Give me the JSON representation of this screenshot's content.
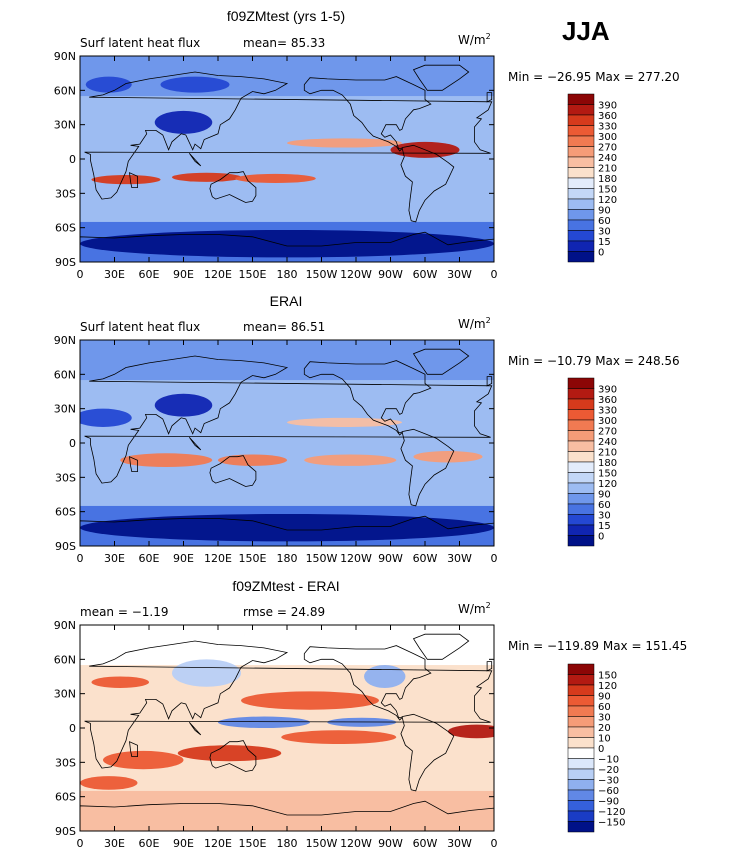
{
  "season": "JJA",
  "panels": [
    {
      "title": "f09ZMtest (yrs 1-5)",
      "left_label": "Surf latent heat flux",
      "mean_text": "mean=  85.33",
      "rmse_text": "",
      "units": "W/m",
      "units_sup": "2",
      "minmax": "Min = −26.95 Max = 277.20",
      "colorbar_labels": [
        "390",
        "360",
        "330",
        "300",
        "270",
        "240",
        "210",
        "180",
        "150",
        "120",
        "90",
        "60",
        "30",
        "15",
        "0"
      ],
      "colorbar_colors": [
        "#8c0606",
        "#b31a12",
        "#d63a1c",
        "#ec5a34",
        "#f17a52",
        "#f59c78",
        "#f8bea2",
        "#fbe1cc",
        "#e3ecfb",
        "#c3d7f7",
        "#9dbcf2",
        "#6f97eb",
        "#4873e2",
        "#2448d3",
        "#1025b2",
        "#001188"
      ]
    },
    {
      "title": "ERAI",
      "left_label": "Surf latent heat flux",
      "mean_text": "mean=  86.51",
      "rmse_text": "",
      "units": "W/m",
      "units_sup": "2",
      "minmax": "Min = −10.79 Max = 248.56",
      "colorbar_labels": [
        "390",
        "360",
        "330",
        "300",
        "270",
        "240",
        "210",
        "180",
        "150",
        "120",
        "90",
        "60",
        "30",
        "15",
        "0"
      ],
      "colorbar_colors": [
        "#8c0606",
        "#b31a12",
        "#d63a1c",
        "#ec5a34",
        "#f17a52",
        "#f59c78",
        "#f8bea2",
        "#fbe1cc",
        "#e3ecfb",
        "#c3d7f7",
        "#9dbcf2",
        "#6f97eb",
        "#4873e2",
        "#2448d3",
        "#1025b2",
        "#001188"
      ]
    },
    {
      "title": "f09ZMtest - ERAI",
      "left_label": "mean =   −1.19",
      "mean_text": "",
      "rmse_text": "rmse =  24.89",
      "units": "W/m",
      "units_sup": "2",
      "minmax": "Min = −119.89 Max = 151.45",
      "colorbar_labels": [
        "150",
        "120",
        "90",
        "60",
        "30",
        "20",
        "10",
        "0",
        "−10",
        "−20",
        "−30",
        "−60",
        "−90",
        "−120",
        "−150"
      ],
      "colorbar_colors": [
        "#8c0606",
        "#b31a12",
        "#d63a1c",
        "#ec5a34",
        "#f17a52",
        "#f59c78",
        "#f8bea2",
        "#fbe1cc",
        "#ffffff",
        "#dbe7fa",
        "#b8cff5",
        "#8fb0ef",
        "#6188e6",
        "#3560dc",
        "#1a3cc5",
        "#001188"
      ]
    }
  ],
  "axes": {
    "y_ticks": [
      "90N",
      "60N",
      "30N",
      "0",
      "30S",
      "60S",
      "90S"
    ],
    "x_ticks": [
      "0",
      "30E",
      "60E",
      "90E",
      "120E",
      "150E",
      "180",
      "150W",
      "120W",
      "90W",
      "60W",
      "30W",
      "0"
    ]
  },
  "chart_data": [
    {
      "type": "heatmap",
      "title": "f09ZMtest (yrs 1-5)",
      "variable": "Surf latent heat flux",
      "units": "W/m2",
      "mean": 85.33,
      "min": -26.95,
      "max": 277.2,
      "levels": [
        0,
        15,
        30,
        60,
        90,
        120,
        150,
        180,
        210,
        240,
        270,
        300,
        330,
        360,
        390
      ],
      "xlim": [
        0,
        360
      ],
      "ylim": [
        -90,
        90
      ]
    },
    {
      "type": "heatmap",
      "title": "ERAI",
      "variable": "Surf latent heat flux",
      "units": "W/m2",
      "mean": 86.51,
      "min": -10.79,
      "max": 248.56,
      "levels": [
        0,
        15,
        30,
        60,
        90,
        120,
        150,
        180,
        210,
        240,
        270,
        300,
        330,
        360,
        390
      ],
      "xlim": [
        0,
        360
      ],
      "ylim": [
        -90,
        90
      ]
    },
    {
      "type": "heatmap",
      "title": "f09ZMtest - ERAI",
      "units": "W/m2",
      "mean": -1.19,
      "rmse": 24.89,
      "min": -119.89,
      "max": 151.45,
      "levels": [
        -150,
        -120,
        -90,
        -60,
        -30,
        -20,
        -10,
        0,
        10,
        20,
        30,
        60,
        90,
        120,
        150
      ],
      "xlim": [
        0,
        360
      ],
      "ylim": [
        -90,
        90
      ]
    }
  ]
}
